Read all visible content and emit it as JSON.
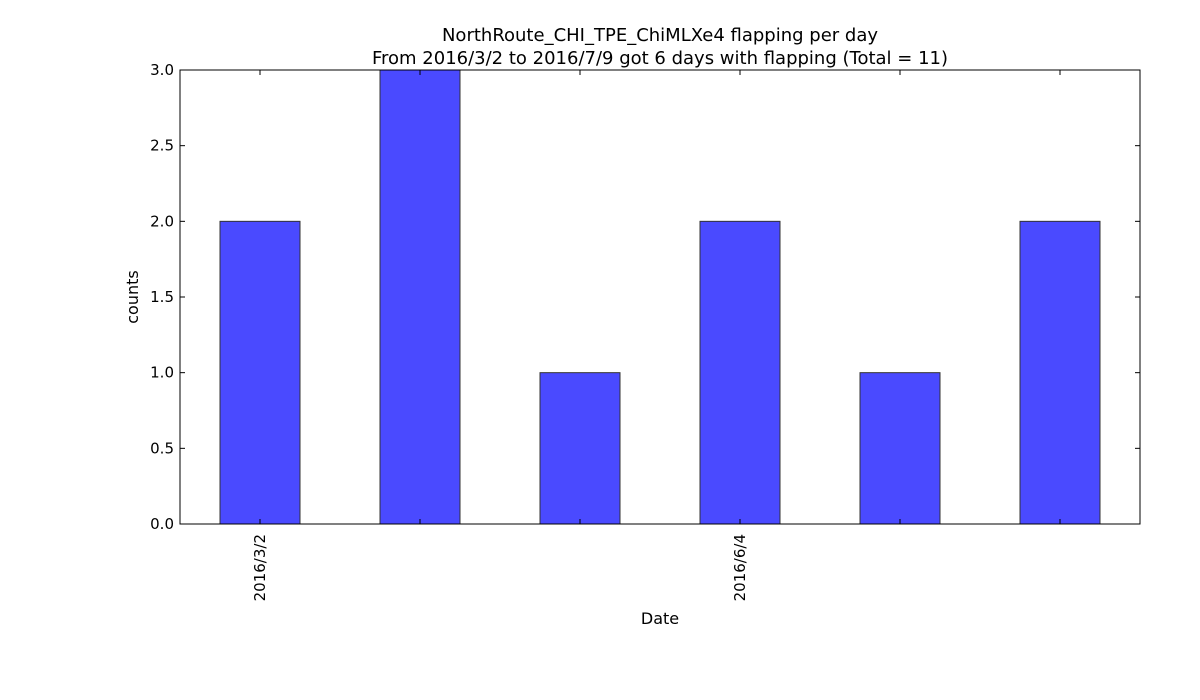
{
  "chart_data": {
    "type": "bar",
    "title": "NorthRoute_CHI_TPE_ChiMLXe4 flapping per day",
    "subtitle": "From 2016/3/2 to 2016/7/9 got 6 days with flapping (Total = 11)",
    "xlabel": "Date",
    "ylabel": "counts",
    "ylim": [
      0,
      3.0
    ],
    "yticks": [
      "0.0",
      "0.5",
      "1.0",
      "1.5",
      "2.0",
      "2.5",
      "3.0"
    ],
    "categories": [
      "2016/3/2",
      "",
      "",
      "2016/6/4",
      "",
      ""
    ],
    "values": [
      2,
      3,
      1,
      2,
      1,
      2
    ],
    "xtick_labels": [
      {
        "index": 0,
        "label": "2016/3/2"
      },
      {
        "index": 3,
        "label": "2016/6/4"
      }
    ],
    "grid": false,
    "legend": "none",
    "colors": {
      "bar": "#4a4aff",
      "bar_edge": "#333333",
      "axes": "#000000"
    }
  }
}
